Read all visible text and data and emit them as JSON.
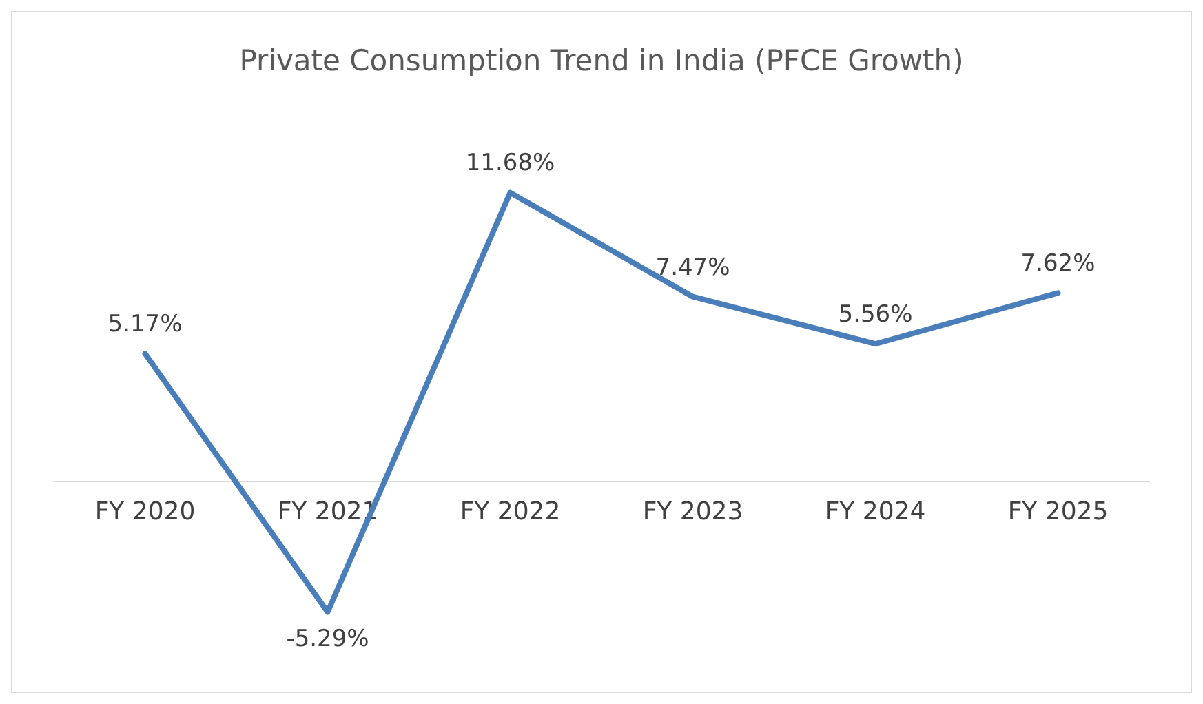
{
  "chart_data": {
    "type": "line",
    "title": "Private Consumption Trend in India (PFCE Growth)",
    "categories": [
      "FY 2020",
      "FY 2021",
      "FY 2022",
      "FY 2023",
      "FY 2024",
      "FY 2025"
    ],
    "series": [
      {
        "color": "#4a7ebb",
        "values": [
          5.17,
          -5.29,
          11.68,
          7.47,
          5.56,
          7.62
        ],
        "value_labels": [
          "5.17%",
          "-5.29%",
          "11.68%",
          "7.47%",
          "5.56%",
          "7.62%"
        ]
      }
    ],
    "grid": false,
    "legend": false,
    "marker": "none",
    "line_style": "solid"
  }
}
